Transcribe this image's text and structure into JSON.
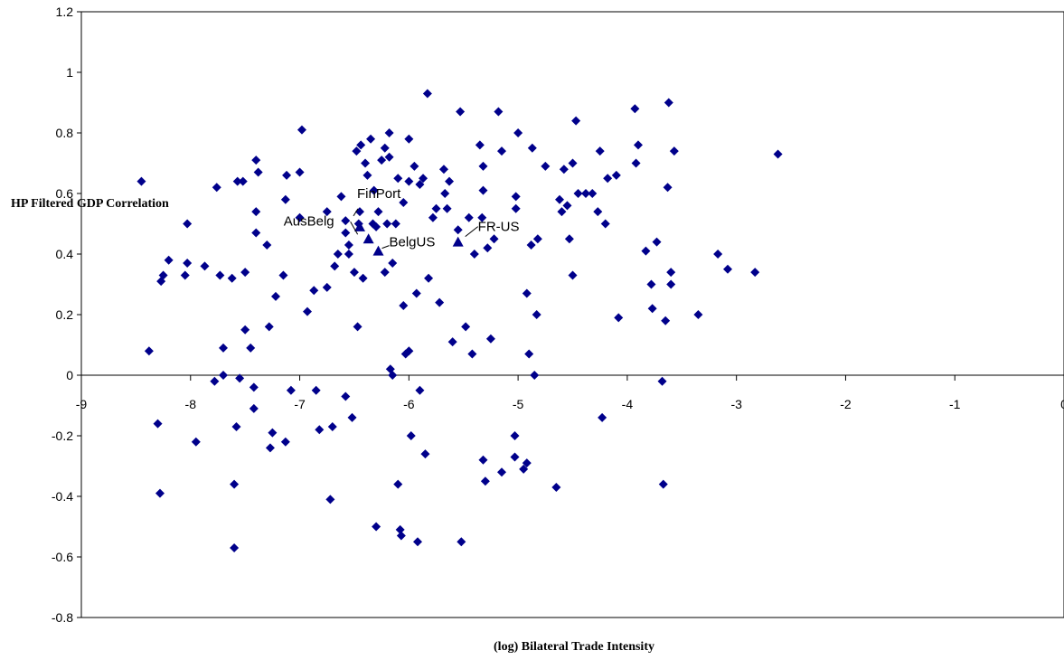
{
  "chart_data": {
    "type": "scatter",
    "title": "",
    "xlabel": "(log) Bilateral Trade Intensity",
    "ylabel": "HP Filtered GDP Correlation",
    "xlim": [
      -9,
      0
    ],
    "ylim": [
      -0.8,
      1.2
    ],
    "xticks": [
      -9,
      -8,
      -7,
      -6,
      -5,
      -4,
      -3,
      -2,
      -1,
      0
    ],
    "yticks": [
      -0.8,
      -0.6,
      -0.4,
      -0.2,
      0,
      0.2,
      0.4,
      0.6,
      0.8,
      1,
      1.2
    ],
    "xtick_labels": [
      "-9",
      "-8",
      "-7",
      "-6",
      "-5",
      "-4",
      "-3",
      "-2",
      "-1",
      "0"
    ],
    "ytick_labels": [
      "-0.8",
      "-0.6",
      "-0.4",
      "-0.2",
      "0",
      "0.2",
      "0.4",
      "0.6",
      "0.8",
      "1",
      "1.2"
    ],
    "grid": false,
    "marker_color": "#00008B",
    "series": [
      {
        "marker": "diamond",
        "points": [
          [
            -8.45,
            0.64
          ],
          [
            -8.38,
            0.08
          ],
          [
            -8.3,
            -0.16
          ],
          [
            -8.28,
            -0.39
          ],
          [
            -8.27,
            0.31
          ],
          [
            -8.25,
            0.33
          ],
          [
            -8.2,
            0.38
          ],
          [
            -8.05,
            0.33
          ],
          [
            -8.03,
            0.5
          ],
          [
            -8.03,
            0.37
          ],
          [
            -7.95,
            -0.22
          ],
          [
            -7.87,
            0.36
          ],
          [
            -7.78,
            -0.02
          ],
          [
            -7.76,
            0.62
          ],
          [
            -7.73,
            0.33
          ],
          [
            -7.7,
            0.09
          ],
          [
            -7.7,
            0.0
          ],
          [
            -7.62,
            0.32
          ],
          [
            -7.6,
            -0.36
          ],
          [
            -7.6,
            -0.57
          ],
          [
            -7.58,
            -0.17
          ],
          [
            -7.57,
            0.64
          ],
          [
            -7.55,
            -0.01
          ],
          [
            -7.52,
            0.64
          ],
          [
            -7.5,
            0.34
          ],
          [
            -7.5,
            0.15
          ],
          [
            -7.45,
            0.09
          ],
          [
            -7.42,
            -0.04
          ],
          [
            -7.42,
            -0.11
          ],
          [
            -7.4,
            0.71
          ],
          [
            -7.38,
            0.67
          ],
          [
            -7.4,
            0.54
          ],
          [
            -7.4,
            0.47
          ],
          [
            -7.3,
            0.43
          ],
          [
            -7.28,
            0.16
          ],
          [
            -7.25,
            -0.19
          ],
          [
            -7.27,
            -0.24
          ],
          [
            -7.22,
            0.26
          ],
          [
            -7.15,
            0.33
          ],
          [
            -7.13,
            0.58
          ],
          [
            -7.13,
            -0.22
          ],
          [
            -7.12,
            0.66
          ],
          [
            -7.08,
            -0.05
          ],
          [
            -7.0,
            0.52
          ],
          [
            -7.0,
            0.67
          ],
          [
            -6.98,
            0.81
          ],
          [
            -6.93,
            0.21
          ],
          [
            -6.87,
            0.28
          ],
          [
            -6.85,
            -0.05
          ],
          [
            -6.82,
            -0.18
          ],
          [
            -6.75,
            0.29
          ],
          [
            -6.75,
            0.54
          ],
          [
            -6.72,
            -0.41
          ],
          [
            -6.7,
            -0.17
          ],
          [
            -6.68,
            0.36
          ],
          [
            -6.65,
            0.4
          ],
          [
            -6.62,
            0.59
          ],
          [
            -6.58,
            0.47
          ],
          [
            -6.58,
            0.51
          ],
          [
            -6.58,
            -0.07
          ],
          [
            -6.55,
            0.43
          ],
          [
            -6.55,
            0.4
          ],
          [
            -6.52,
            -0.14
          ],
          [
            -6.5,
            0.34
          ],
          [
            -6.48,
            0.74
          ],
          [
            -6.47,
            0.16
          ],
          [
            -6.46,
            0.5
          ],
          [
            -6.45,
            0.54
          ],
          [
            -6.44,
            0.76
          ],
          [
            -6.42,
            0.32
          ],
          [
            -6.4,
            0.7
          ],
          [
            -6.38,
            0.66
          ],
          [
            -6.35,
            0.78
          ],
          [
            -6.33,
            0.5
          ],
          [
            -6.32,
            0.61
          ],
          [
            -6.3,
            -0.5
          ],
          [
            -6.3,
            0.49
          ],
          [
            -6.28,
            0.54
          ],
          [
            -6.25,
            0.71
          ],
          [
            -6.22,
            0.75
          ],
          [
            -6.22,
            0.34
          ],
          [
            -6.2,
            0.5
          ],
          [
            -6.18,
            0.72
          ],
          [
            -6.18,
            0.8
          ],
          [
            -6.17,
            0.02
          ],
          [
            -6.15,
            0.0
          ],
          [
            -6.15,
            0.37
          ],
          [
            -6.12,
            0.5
          ],
          [
            -6.1,
            0.65
          ],
          [
            -6.1,
            -0.36
          ],
          [
            -6.08,
            -0.51
          ],
          [
            -6.07,
            -0.53
          ],
          [
            -6.05,
            0.23
          ],
          [
            -6.05,
            0.57
          ],
          [
            -6.03,
            0.07
          ],
          [
            -6.0,
            0.78
          ],
          [
            -6.0,
            0.64
          ],
          [
            -6.0,
            0.08
          ],
          [
            -5.98,
            -0.2
          ],
          [
            -5.95,
            0.69
          ],
          [
            -5.93,
            0.27
          ],
          [
            -5.92,
            -0.55
          ],
          [
            -5.9,
            -0.05
          ],
          [
            -5.9,
            0.63
          ],
          [
            -5.87,
            0.65
          ],
          [
            -5.85,
            -0.26
          ],
          [
            -5.83,
            0.93
          ],
          [
            -5.82,
            0.32
          ],
          [
            -5.78,
            0.52
          ],
          [
            -5.75,
            0.55
          ],
          [
            -5.72,
            0.24
          ],
          [
            -5.68,
            0.68
          ],
          [
            -5.67,
            0.6
          ],
          [
            -5.65,
            0.55
          ],
          [
            -5.63,
            0.64
          ],
          [
            -5.6,
            0.11
          ],
          [
            -5.55,
            0.48
          ],
          [
            -5.53,
            0.87
          ],
          [
            -5.52,
            -0.55
          ],
          [
            -5.48,
            0.16
          ],
          [
            -5.45,
            0.52
          ],
          [
            -5.42,
            0.07
          ],
          [
            -5.4,
            0.4
          ],
          [
            -5.35,
            0.76
          ],
          [
            -5.33,
            0.52
          ],
          [
            -5.32,
            0.69
          ],
          [
            -5.32,
            0.61
          ],
          [
            -5.32,
            -0.28
          ],
          [
            -5.3,
            -0.35
          ],
          [
            -5.28,
            0.42
          ],
          [
            -5.25,
            0.12
          ],
          [
            -5.22,
            0.45
          ],
          [
            -5.18,
            0.87
          ],
          [
            -5.15,
            0.74
          ],
          [
            -5.15,
            -0.32
          ],
          [
            -5.02,
            0.55
          ],
          [
            -5.02,
            0.59
          ],
          [
            -5.03,
            -0.2
          ],
          [
            -5.03,
            -0.27
          ],
          [
            -5.0,
            0.8
          ],
          [
            -4.95,
            -0.31
          ],
          [
            -4.92,
            0.27
          ],
          [
            -4.92,
            -0.29
          ],
          [
            -4.9,
            0.07
          ],
          [
            -4.88,
            0.43
          ],
          [
            -4.87,
            0.75
          ],
          [
            -4.85,
            0.0
          ],
          [
            -4.83,
            0.2
          ],
          [
            -4.82,
            0.45
          ],
          [
            -4.75,
            0.69
          ],
          [
            -4.65,
            -0.37
          ],
          [
            -4.62,
            0.58
          ],
          [
            -4.6,
            0.54
          ],
          [
            -4.58,
            0.68
          ],
          [
            -4.55,
            0.56
          ],
          [
            -4.53,
            0.45
          ],
          [
            -4.5,
            0.7
          ],
          [
            -4.5,
            0.33
          ],
          [
            -4.47,
            0.84
          ],
          [
            -4.45,
            0.6
          ],
          [
            -4.38,
            0.6
          ],
          [
            -4.32,
            0.6
          ],
          [
            -4.27,
            0.54
          ],
          [
            -4.25,
            0.74
          ],
          [
            -4.23,
            -0.14
          ],
          [
            -4.2,
            0.5
          ],
          [
            -4.18,
            0.65
          ],
          [
            -4.1,
            0.66
          ],
          [
            -4.08,
            0.19
          ],
          [
            -3.93,
            0.88
          ],
          [
            -3.92,
            0.7
          ],
          [
            -3.9,
            0.76
          ],
          [
            -3.83,
            0.41
          ],
          [
            -3.78,
            0.3
          ],
          [
            -3.77,
            0.22
          ],
          [
            -3.73,
            0.44
          ],
          [
            -3.68,
            -0.02
          ],
          [
            -3.67,
            -0.36
          ],
          [
            -3.65,
            0.18
          ],
          [
            -3.63,
            0.62
          ],
          [
            -3.62,
            0.9
          ],
          [
            -3.6,
            0.34
          ],
          [
            -3.6,
            0.3
          ],
          [
            -3.57,
            0.74
          ],
          [
            -3.35,
            0.2
          ],
          [
            -3.17,
            0.4
          ],
          [
            -3.08,
            0.35
          ],
          [
            -2.83,
            0.34
          ],
          [
            -2.62,
            0.73
          ]
        ]
      },
      {
        "marker": "triangle",
        "points": [
          [
            -6.45,
            0.49
          ],
          [
            -6.37,
            0.45
          ],
          [
            -6.28,
            0.41
          ],
          [
            -5.55,
            0.44
          ]
        ]
      }
    ],
    "annotations": [
      {
        "text": "FinPort",
        "x": -6.45,
        "y": 0.49
      },
      {
        "text": "AusBelg",
        "x": -6.37,
        "y": 0.45
      },
      {
        "text": "BelgUS",
        "x": -6.28,
        "y": 0.41
      },
      {
        "text": "FR-US",
        "x": -5.55,
        "y": 0.44
      }
    ]
  }
}
